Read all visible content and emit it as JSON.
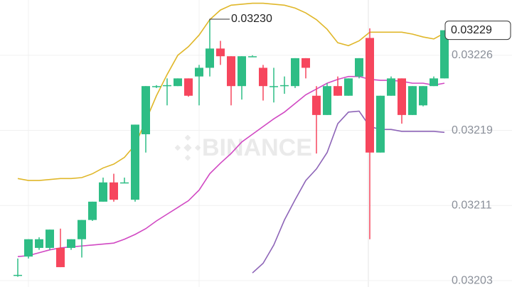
{
  "chart_data": {
    "type": "candlestick",
    "ylim": [
      0.0320234,
      0.0323214
    ],
    "yticks": [
      {
        "value": 0.032264,
        "label": "0.03226"
      },
      {
        "value": 0.032186,
        "label": "0.03219"
      },
      {
        "value": 0.032108,
        "label": "0.03211"
      },
      0.03203
    ],
    "grid": true,
    "up_color": "#2ebd85",
    "down_color": "#f6465d",
    "watermark": "BINANCE",
    "high_label": "0.03230",
    "last_price_label": "0.03229",
    "open": [
      0.032036,
      0.032055,
      0.032064,
      0.032064,
      0.032064,
      0.032064,
      0.032073,
      0.032093,
      0.032112,
      0.032132,
      0.032132,
      0.032114,
      0.032182,
      0.032232,
      0.032232,
      0.032232,
      0.03224,
      0.032242,
      0.032251,
      0.032271,
      0.032263,
      0.032232,
      0.032263,
      0.032251,
      0.032232,
      0.032232,
      0.032232,
      0.032261,
      0.032222,
      0.032202,
      0.032232,
      0.032222,
      0.032242,
      0.032282,
      0.032163,
      0.032222,
      0.03224,
      0.032202,
      0.032212,
      0.032232,
      0.03224
    ],
    "high": [
      0.032053,
      0.032073,
      0.032075,
      0.032083,
      0.032084,
      0.032073,
      0.032093,
      0.032112,
      0.032137,
      0.032141,
      0.032137,
      0.032192,
      0.032232,
      0.032233,
      0.03224,
      0.03224,
      0.03224,
      0.032254,
      0.0323,
      0.032279,
      0.032263,
      0.032263,
      0.032264,
      0.032254,
      0.032251,
      0.032242,
      0.032261,
      0.032261,
      0.032232,
      0.032235,
      0.032242,
      0.03224,
      0.032261,
      0.032292,
      0.032222,
      0.032242,
      0.03224,
      0.032232,
      0.032232,
      0.032242,
      0.03229
    ],
    "low": [
      0.032034,
      0.032053,
      0.032062,
      0.032062,
      0.032044,
      0.032062,
      0.032054,
      0.032092,
      0.032112,
      0.032112,
      0.032131,
      0.032112,
      0.032163,
      0.03223,
      0.032212,
      0.032232,
      0.032221,
      0.032212,
      0.032242,
      0.032254,
      0.032212,
      0.032218,
      0.032263,
      0.032217,
      0.032215,
      0.032224,
      0.03223,
      0.03224,
      0.032162,
      0.032202,
      0.032222,
      0.032222,
      0.03224,
      0.032073,
      0.032163,
      0.032222,
      0.032193,
      0.032202,
      0.032211,
      0.032232,
      0.03224
    ],
    "close": [
      0.032036,
      0.032073,
      0.032073,
      0.032083,
      0.032044,
      0.032073,
      0.032093,
      0.032112,
      0.032132,
      0.032114,
      0.032132,
      0.032192,
      0.032232,
      0.032232,
      0.032233,
      0.03224,
      0.032222,
      0.032251,
      0.032271,
      0.032263,
      0.032232,
      0.032263,
      0.032263,
      0.032232,
      0.032232,
      0.032233,
      0.032261,
      0.032251,
      0.032202,
      0.032232,
      0.032222,
      0.03224,
      0.032261,
      0.032163,
      0.032222,
      0.03224,
      0.032202,
      0.032232,
      0.032232,
      0.03224,
      0.03229
    ],
    "series": [
      {
        "color": "#e0b72a",
        "values": [
          0.032136,
          0.032134,
          0.032134,
          0.032135,
          0.032136,
          0.032136,
          0.032137,
          0.032141,
          0.032147,
          0.032151,
          0.032158,
          0.032171,
          0.032196,
          0.032222,
          0.032244,
          0.032264,
          0.032273,
          0.032285,
          0.032301,
          0.032311,
          0.032316,
          0.032317,
          0.032318,
          0.032318,
          0.032317,
          0.032316,
          0.032313,
          0.032308,
          0.032301,
          0.032291,
          0.032277,
          0.032274,
          0.032279,
          0.032288,
          0.032288,
          0.032288,
          0.032288,
          0.032286,
          0.032283,
          0.032281,
          0.032287
        ]
      },
      {
        "color": "#d149c3",
        "values": [
          0.032055,
          0.032056,
          0.032059,
          0.032062,
          0.032064,
          0.032065,
          0.032066,
          0.032067,
          0.032068,
          0.032069,
          0.032073,
          0.032078,
          0.032084,
          0.032092,
          0.032099,
          0.032106,
          0.032113,
          0.032124,
          0.032141,
          0.032152,
          0.032162,
          0.032174,
          0.032182,
          0.03219,
          0.032198,
          0.032205,
          0.032214,
          0.032223,
          0.032229,
          0.032235,
          0.032239,
          0.032242,
          0.032242,
          0.032239,
          0.032238,
          0.032238,
          0.032237,
          0.032235,
          0.032235,
          0.032233,
          0.032235
        ]
      },
      {
        "color": "#8e65b8",
        "values": [
          null,
          null,
          null,
          null,
          null,
          null,
          null,
          null,
          null,
          null,
          null,
          null,
          null,
          null,
          null,
          null,
          null,
          null,
          null,
          null,
          null,
          null,
          0.032038,
          0.032048,
          0.032067,
          0.032093,
          0.032114,
          0.032134,
          0.032146,
          0.032163,
          0.032193,
          0.032205,
          0.032206,
          0.03219,
          0.032187,
          0.032187,
          0.032185,
          0.032185,
          0.032185,
          0.032185,
          0.032184
        ]
      }
    ]
  }
}
